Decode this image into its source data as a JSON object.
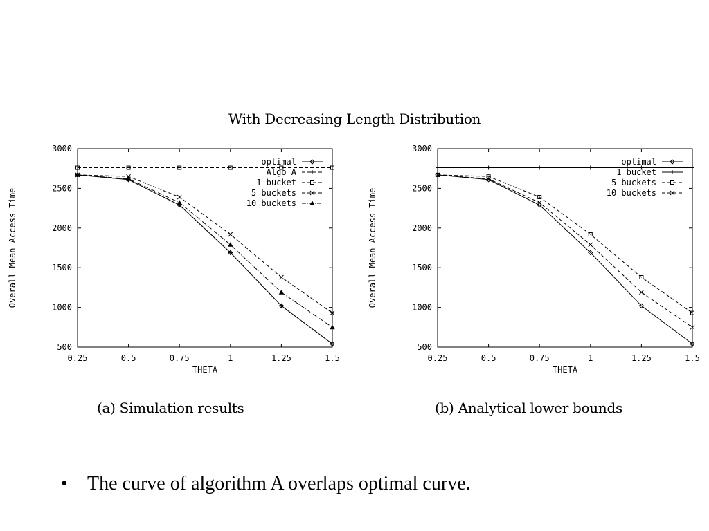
{
  "title": "With Decreasing Length Distribution",
  "note": {
    "bullet": "•",
    "text": "The curve of algorithm A  overlaps optimal curve."
  },
  "chart_data": [
    {
      "type": "line",
      "caption": "(a) Simulation results",
      "xlabel": "THETA",
      "ylabel": "Overall Mean Access Time",
      "x": [
        0.25,
        0.5,
        0.75,
        1,
        1.25,
        1.5
      ],
      "xticks": [
        "0.25",
        "0.5",
        "0.75",
        "1",
        "1.25",
        "1.5"
      ],
      "yticks": [
        500,
        1000,
        1500,
        2000,
        2500,
        3000
      ],
      "xlim": [
        0.25,
        1.5
      ],
      "ylim": [
        500,
        3000
      ],
      "legend_position": "top-right",
      "series": [
        {
          "name": "optimal",
          "marker": "diamond",
          "dash": "solid",
          "values": [
            2670,
            2610,
            2290,
            1690,
            1020,
            540
          ]
        },
        {
          "name": "Algo A",
          "marker": "plus",
          "dash": "dashed",
          "values": [
            2670,
            2610,
            2290,
            1690,
            1020,
            540
          ]
        },
        {
          "name": "1 bucket",
          "marker": "square",
          "dash": "dashed",
          "values": [
            2760,
            2760,
            2760,
            2760,
            2760,
            2760
          ]
        },
        {
          "name": "5 buckets",
          "marker": "x",
          "dash": "dashed",
          "values": [
            2670,
            2650,
            2390,
            1920,
            1380,
            930
          ]
        },
        {
          "name": "10 buckets",
          "marker": "triangle",
          "dash": "dashdot",
          "values": [
            2670,
            2620,
            2320,
            1790,
            1190,
            750
          ]
        }
      ]
    },
    {
      "type": "line",
      "caption": "(b) Analytical lower bounds",
      "xlabel": "THETA",
      "ylabel": "Overall Mean Access Time",
      "x": [
        0.25,
        0.5,
        0.75,
        1,
        1.25,
        1.5
      ],
      "xticks": [
        "0.25",
        "0.5",
        "0.75",
        "1",
        "1.25",
        "1.5"
      ],
      "yticks": [
        500,
        1000,
        1500,
        2000,
        2500,
        3000
      ],
      "xlim": [
        0.25,
        1.5
      ],
      "ylim": [
        500,
        3000
      ],
      "legend_position": "top-right",
      "series": [
        {
          "name": "optimal",
          "marker": "diamond",
          "dash": "solid",
          "values": [
            2670,
            2610,
            2290,
            1690,
            1020,
            540
          ]
        },
        {
          "name": "1 bucket",
          "marker": "plus",
          "dash": "solid",
          "values": [
            2760,
            2760,
            2760,
            2760,
            2760,
            2760
          ]
        },
        {
          "name": "5 buckets",
          "marker": "square",
          "dash": "dashed",
          "values": [
            2670,
            2650,
            2390,
            1920,
            1380,
            930
          ]
        },
        {
          "name": "10 buckets",
          "marker": "x",
          "dash": "dashed",
          "values": [
            2670,
            2620,
            2320,
            1790,
            1190,
            750
          ]
        }
      ]
    }
  ]
}
